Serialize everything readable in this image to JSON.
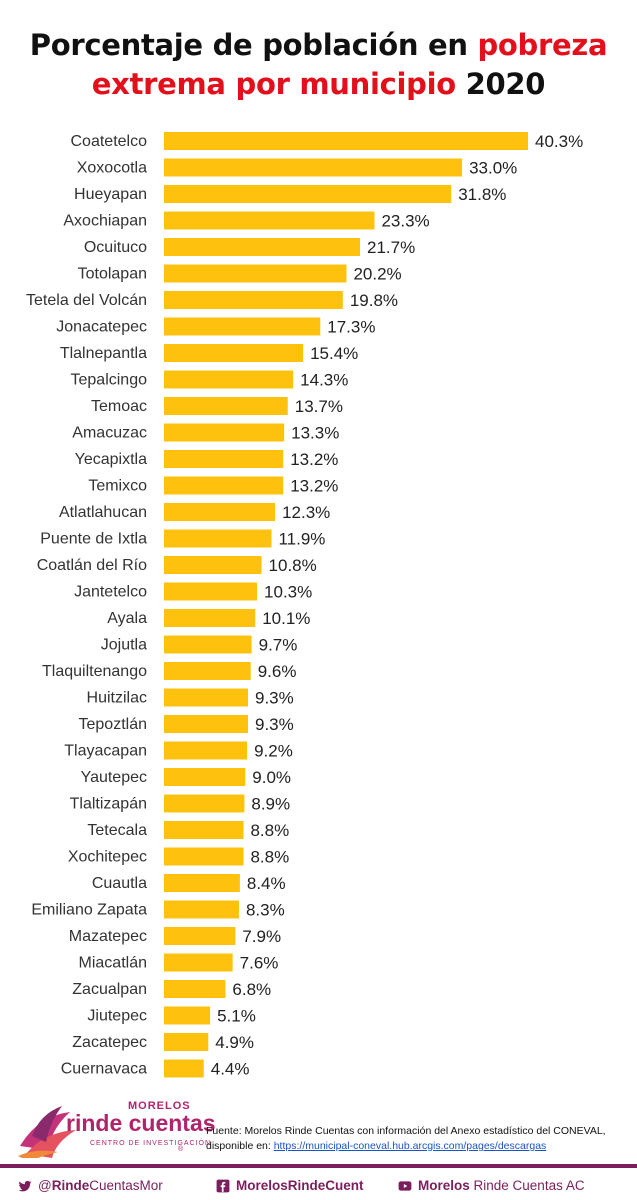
{
  "title": {
    "part1": "Porcentaje de población en ",
    "part2": "pobreza",
    "part3": "extrema por municipio",
    "part4": " 2020"
  },
  "colors": {
    "bar": "#fdc10e",
    "title_red": "#e3101b",
    "brand": "#7a1f5c"
  },
  "chart_data": {
    "type": "bar",
    "orientation": "horizontal",
    "title": "Porcentaje de población en pobreza extrema por municipio 2020",
    "categories": [
      "Coatetelco",
      "Xoxocotla",
      "Hueyapan",
      "Axochiapan",
      "Ocuituco",
      "Totolapan",
      "Tetela del Volcán",
      "Jonacatepec",
      "Tlalnepantla",
      "Tepalcingo",
      "Temoac",
      "Amacuzac",
      "Yecapixtla",
      "Temixco",
      "Atlatlahucan",
      "Puente de Ixtla",
      "Coatlán del Río",
      "Jantetelco",
      "Ayala",
      "Jojutla",
      "Tlaquiltenango",
      "Huitzilac",
      "Tepoztlán",
      "Tlayacapan",
      "Yautepec",
      "Tlaltizapán",
      "Tetecala",
      "Xochitepec",
      "Cuautla",
      "Emiliano Zapata",
      "Mazatepec",
      "Miacatlán",
      "Zacualpan",
      "Jiutepec",
      "Zacatepec",
      "Cuernavaca"
    ],
    "values": [
      40.3,
      33.0,
      31.8,
      23.3,
      21.7,
      20.2,
      19.8,
      17.3,
      15.4,
      14.3,
      13.7,
      13.3,
      13.2,
      13.2,
      12.3,
      11.9,
      10.8,
      10.3,
      10.1,
      9.7,
      9.6,
      9.3,
      9.3,
      9.2,
      9.0,
      8.9,
      8.8,
      8.8,
      8.4,
      8.3,
      7.9,
      7.6,
      6.8,
      5.1,
      4.9,
      4.4
    ],
    "value_labels": [
      "40.3%",
      "33.0%",
      "31.8%",
      "23.3%",
      "21.7%",
      "20.2%",
      "19.8%",
      "17.3%",
      "15.4%",
      "14.3%",
      "13.7%",
      "13.3%",
      "13.2%",
      "13.2%",
      "12.3%",
      "11.9%",
      "10.8%",
      "10.3%",
      "10.1%",
      "9.7%",
      "9.6%",
      "9.3%",
      "9.3%",
      "9.2%",
      "9.0%",
      "8.9%",
      "8.8%",
      "8.8%",
      "8.4%",
      "8.3%",
      "7.9%",
      "7.6%",
      "6.8%",
      "5.1%",
      "4.9%",
      "4.4%"
    ],
    "xlim": [
      0,
      40.3
    ],
    "grid": false,
    "legend": "none"
  },
  "footer": {
    "logo_top": "MORELOS",
    "logo_main": "rinde cuentas",
    "logo_sub": "CENTRO DE INVESTIGACIÓN",
    "logo_reg": "®",
    "source_text": "Fuente: Morelos Rinde Cuentas con información del Anexo estadístico del CONEVAL, disponible en: ",
    "source_link": "https://municipal-coneval.hub.arcgis.com/pages/descargas",
    "social": [
      {
        "icon": "twitter-icon",
        "handle_pre": "@",
        "handle_bold": "Rinde",
        "handle_rest": "CuentasMor"
      },
      {
        "icon": "facebook-icon",
        "handle_pre": "",
        "handle_bold": "Morelos",
        "handle_rest": "RindeCuent"
      },
      {
        "icon": "youtube-icon",
        "handle_pre": "",
        "handle_bold": "Morelos",
        "handle_rest": " Rinde Cuentas AC"
      }
    ]
  }
}
